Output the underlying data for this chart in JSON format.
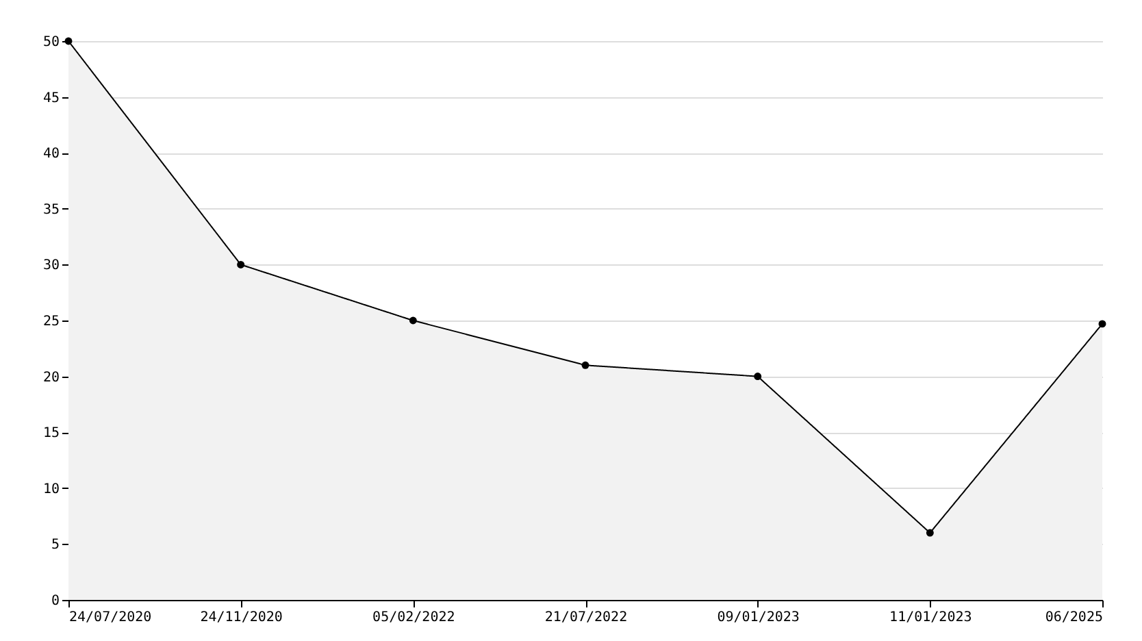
{
  "chart_data": {
    "type": "area",
    "categories": [
      "24/07/2020",
      "24/11/2020",
      "05/02/2022",
      "21/07/2022",
      "09/01/2023",
      "11/01/2023",
      "06/2025"
    ],
    "series": [
      {
        "color": "#f2f2f2",
        "values": [
          50,
          30,
          25,
          21,
          20,
          6,
          24.7
        ]
      }
    ],
    "ylim": [
      0,
      50
    ],
    "yticks": [
      0,
      5,
      10,
      15,
      20,
      25,
      30,
      35,
      40,
      45,
      50
    ],
    "grid": "y",
    "marker": "circle",
    "line_style": "solid"
  }
}
